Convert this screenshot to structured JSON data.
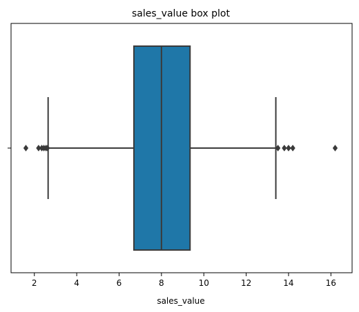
{
  "chart_data": {
    "type": "box",
    "title": "sales_value box plot",
    "xlabel": "sales_value",
    "ylabel": "",
    "xlim": [
      0.9,
      17.0
    ],
    "xticks": [
      2,
      4,
      6,
      8,
      10,
      12,
      14,
      16
    ],
    "grid": false,
    "orientation": "horizontal",
    "series": [
      {
        "color": "#1f77a8",
        "whisker_low": 2.65,
        "q1": 6.7,
        "median": 8.0,
        "q3": 9.35,
        "whisker_high": 13.4,
        "outliers": [
          1.6,
          2.2,
          2.35,
          2.45,
          2.55,
          2.62,
          13.5,
          13.8,
          14.0,
          14.2,
          16.2
        ]
      }
    ]
  }
}
